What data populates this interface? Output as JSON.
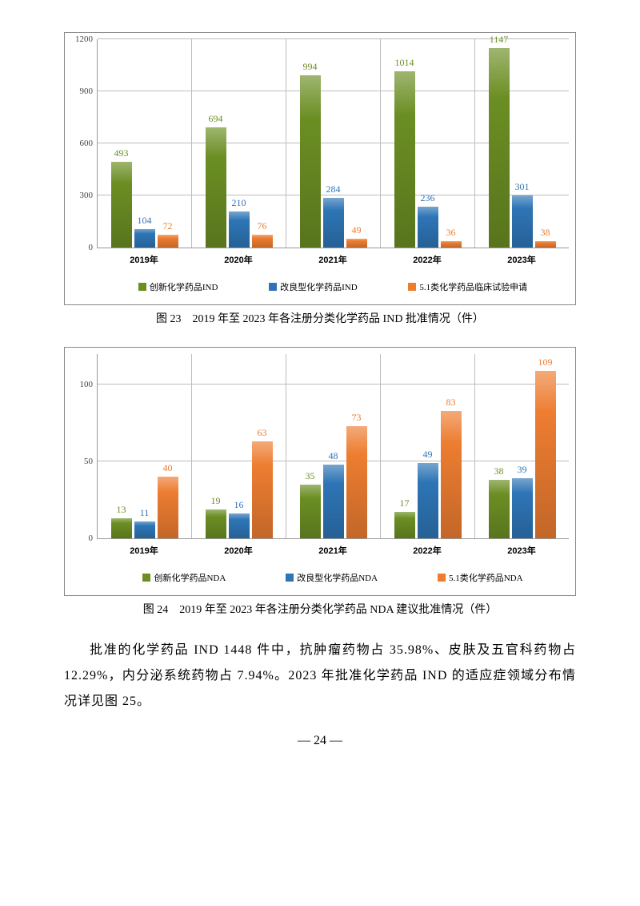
{
  "colors": {
    "s1": "#6b8e23",
    "s2": "#2e75b6",
    "s3": "#ed7d31",
    "grid": "#bdbdbd",
    "l1": "#6b8e23",
    "l2": "#2e75b6",
    "l3": "#ed7d31"
  },
  "chart1": {
    "ymax": 1200,
    "yticks": [
      0,
      300,
      600,
      900,
      1200
    ],
    "categories": [
      "2019年",
      "2020年",
      "2021年",
      "2022年",
      "2023年"
    ],
    "series": [
      {
        "name": "创新化学药品IND",
        "color": "#6b8e23",
        "labelColor": "#6b8e23",
        "values": [
          493,
          694,
          994,
          1014,
          1147
        ]
      },
      {
        "name": "改良型化学药品IND",
        "color": "#2e75b6",
        "labelColor": "#2e75b6",
        "values": [
          104,
          210,
          284,
          236,
          301
        ]
      },
      {
        "name": "5.1类化学药品临床试验申请",
        "color": "#ed7d31",
        "labelColor": "#ed7d31",
        "values": [
          72,
          76,
          49,
          36,
          38
        ]
      }
    ],
    "caption": "图 23　2019 年至 2023 年各注册分类化学药品 IND 批准情况（件）"
  },
  "chart2": {
    "ymax": 120,
    "yticks": [
      0,
      50,
      100
    ],
    "categories": [
      "2019年",
      "2020年",
      "2021年",
      "2022年",
      "2023年"
    ],
    "series": [
      {
        "name": "创新化学药品NDA",
        "color": "#6b8e23",
        "labelColor": "#6b8e23",
        "values": [
          13,
          19,
          35,
          17,
          38
        ]
      },
      {
        "name": "改良型化学药品NDA",
        "color": "#2e75b6",
        "labelColor": "#2e75b6",
        "values": [
          11,
          16,
          48,
          49,
          39
        ]
      },
      {
        "name": "5.1类化学药品NDA",
        "color": "#ed7d31",
        "labelColor": "#ed7d31",
        "values": [
          40,
          63,
          73,
          83,
          109
        ]
      }
    ],
    "caption": "图 24　2019 年至 2023 年各注册分类化学药品 NDA 建议批准情况（件）"
  },
  "paragraph": "批准的化学药品 IND 1448 件中，抗肿瘤药物占 35.98%、皮肤及五官科药物占 12.29%，内分泌系统药物占 7.94%。2023 年批准化学药品 IND 的适应症领域分布情况详见图 25。",
  "pagenum": "— 24 —"
}
